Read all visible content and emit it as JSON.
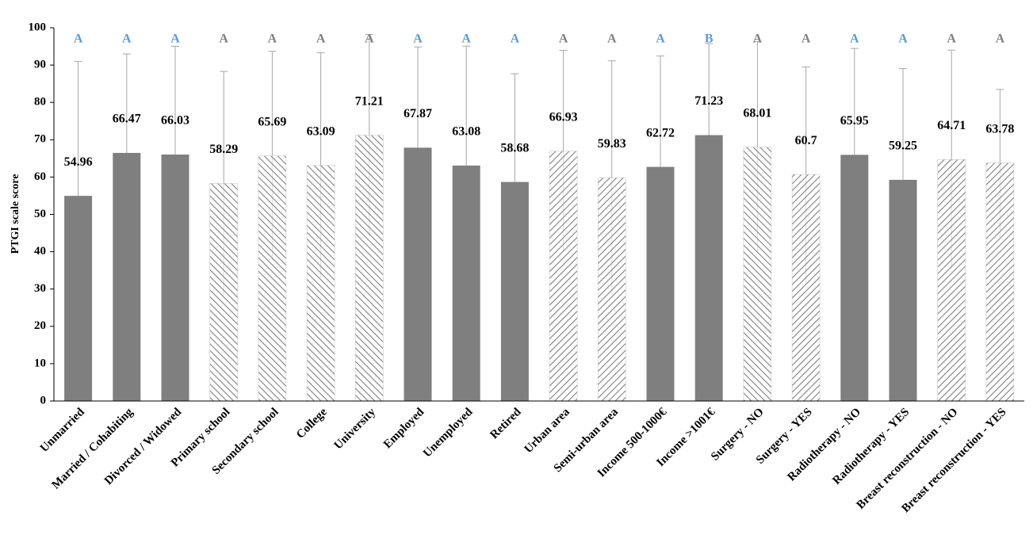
{
  "chart_data": {
    "type": "bar",
    "y_label": "PTGI scale score",
    "categories": [
      "Unmarried",
      "Married / Cohabiting",
      "Divorced / Widowed",
      "Primary school",
      "Secondary school",
      "College",
      "University",
      "Employed",
      "Unemployed",
      "Retired",
      "Urban area",
      "Semi-urban area",
      "Income 500-1000€",
      "Income >1001€",
      "Surgery - NO",
      "Surgery - YES",
      "Radiotherapy - NO",
      "Radiotherapy - YES",
      "Breast reconstruction - NO",
      "Breast reconstruction - YES"
    ],
    "values": [
      54.96,
      66.47,
      66.03,
      58.29,
      65.69,
      63.09,
      71.21,
      67.87,
      63.08,
      58.68,
      66.93,
      59.83,
      62.72,
      71.23,
      68.01,
      60.7,
      65.95,
      59.25,
      64.71,
      63.78
    ],
    "errors": [
      36,
      26.5,
      29,
      30,
      28,
      30.2,
      27,
      27,
      32,
      29,
      27,
      31.3,
      29.7,
      24.5,
      28.3,
      28.8,
      28.5,
      29.8,
      29.3,
      19.7
    ],
    "fills": [
      "solid",
      "solid",
      "solid",
      "hatch-back",
      "hatch-back",
      "hatch-back",
      "hatch-back",
      "solid",
      "solid",
      "solid",
      "hatch-fwd",
      "hatch-fwd",
      "solid",
      "solid",
      "hatch-back",
      "hatch-fwd",
      "solid",
      "solid",
      "hatch-fwd",
      "hatch-fwd"
    ],
    "letters": [
      "A",
      "A",
      "A",
      "A",
      "A",
      "A",
      "A",
      "A",
      "A",
      "A",
      "A",
      "A",
      "A",
      "B",
      "A",
      "A",
      "A",
      "A",
      "A",
      "A"
    ],
    "letter_colors": [
      "#5b9bd5",
      "#5b9bd5",
      "#5b9bd5",
      "#808080",
      "#808080",
      "#808080",
      "#808080",
      "#5b9bd5",
      "#5b9bd5",
      "#5b9bd5",
      "#808080",
      "#808080",
      "#5b9bd5",
      "#5b9bd5",
      "#808080",
      "#808080",
      "#5b9bd5",
      "#5b9bd5",
      "#808080",
      "#808080"
    ],
    "color": "#7f7f7f",
    "error_color": "#a6a6a6",
    "ylim": [
      0,
      100
    ],
    "yticks": [
      0,
      10,
      20,
      30,
      40,
      50,
      60,
      70,
      80,
      90,
      100
    ]
  }
}
